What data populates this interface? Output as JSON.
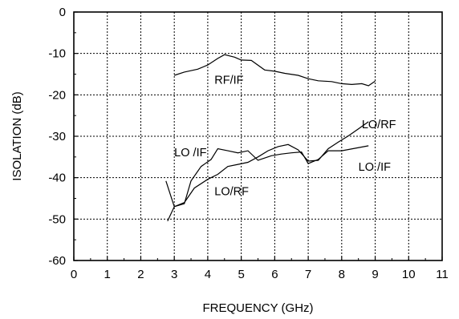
{
  "chart_data": {
    "type": "line",
    "xlabel": "FREQUENCY (GHz)",
    "ylabel": "ISOLATION (dB)",
    "xlim": [
      0,
      11
    ],
    "ylim": [
      -60,
      0
    ],
    "x_ticks": [
      0,
      1,
      2,
      3,
      4,
      5,
      6,
      7,
      8,
      9,
      10,
      11
    ],
    "y_ticks": [
      0,
      -10,
      -20,
      -30,
      -40,
      -50,
      -60
    ],
    "grid": true,
    "series": [
      {
        "name": "RF/IF",
        "x": [
          3.0,
          3.3,
          3.7,
          4.0,
          4.3,
          4.5,
          4.8,
          5.0,
          5.3,
          5.7,
          6.0,
          6.3,
          6.7,
          7.0,
          7.3,
          7.7,
          8.0,
          8.3,
          8.6,
          8.8,
          9.0
        ],
        "y": [
          -15.3,
          -14.5,
          -13.8,
          -12.8,
          -11.2,
          -10.3,
          -10.9,
          -11.6,
          -11.7,
          -14.0,
          -14.3,
          -14.8,
          -15.3,
          -16.1,
          -16.6,
          -16.8,
          -17.3,
          -17.5,
          -17.3,
          -17.8,
          -16.7
        ]
      },
      {
        "name": "LO /IF",
        "x": [
          2.75,
          2.9,
          3.0,
          3.3,
          3.5,
          3.8,
          4.1,
          4.3,
          4.6,
          4.9,
          5.2,
          5.5,
          5.9,
          6.2,
          6.5,
          6.8,
          7.0,
          7.3,
          7.6,
          8.0,
          8.4,
          8.8
        ],
        "y": [
          -40.8,
          -44.5,
          -47.0,
          -46.3,
          -40.8,
          -37.3,
          -35.6,
          -33.0,
          -33.5,
          -34.0,
          -33.5,
          -35.8,
          -34.7,
          -34.3,
          -34.0,
          -33.8,
          -36.6,
          -35.6,
          -33.5,
          -33.5,
          -32.9,
          -32.3
        ]
      },
      {
        "name": "LO/RF",
        "x": [
          2.8,
          3.0,
          3.3,
          3.6,
          4.0,
          4.3,
          4.6,
          4.9,
          5.2,
          5.5,
          5.8,
          6.1,
          6.4,
          6.7,
          7.0,
          7.3,
          7.6,
          7.9,
          8.2,
          8.5,
          8.8
        ],
        "y": [
          -50.5,
          -47.0,
          -46.0,
          -42.5,
          -40.4,
          -39.2,
          -37.3,
          -36.8,
          -36.3,
          -35.0,
          -33.5,
          -32.5,
          -32.0,
          -33.3,
          -36.0,
          -35.8,
          -33.0,
          -31.4,
          -29.9,
          -28.2,
          -26.5
        ]
      }
    ],
    "annotations": [
      {
        "text": "RF/IF",
        "x": 4.2,
        "y": -17.3
      },
      {
        "text": "LO /IF",
        "x": 3.0,
        "y": -34.8
      },
      {
        "text": "LO/RF",
        "x": 4.2,
        "y": -44.2
      },
      {
        "text": "LO/RF",
        "x": 8.6,
        "y": -28.1
      },
      {
        "text": "LO /IF",
        "x": 8.5,
        "y": -38.3
      }
    ]
  }
}
